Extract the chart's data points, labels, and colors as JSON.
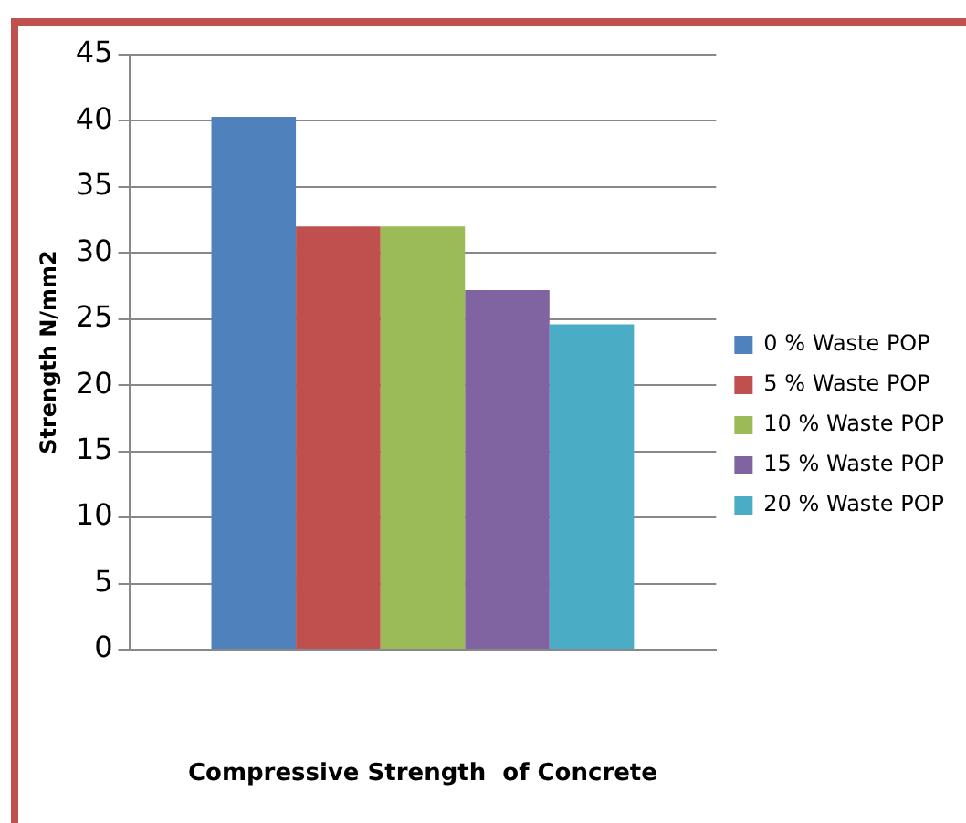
{
  "chart_data": {
    "type": "bar",
    "xlabel": "Compressive Strength  of Concrete",
    "ylabel": "Strength N/mm2",
    "categories": [
      null
    ],
    "series": [
      {
        "name": "0 % Waste POP",
        "color": "#4f81bd",
        "values": [
          40.3
        ]
      },
      {
        "name": "5 % Waste POP",
        "color": "#c0504d",
        "values": [
          32
        ]
      },
      {
        "name": "10 % Waste POP",
        "color": "#9bbb59",
        "values": [
          32
        ]
      },
      {
        "name": "15 % Waste POP",
        "color": "#8064a2",
        "values": [
          27.2
        ]
      },
      {
        "name": "20 % Waste POP",
        "color": "#4bacc6",
        "values": [
          24.6
        ]
      }
    ],
    "ylim": [
      0,
      45
    ],
    "yticks": [
      0,
      5,
      10,
      15,
      20,
      25,
      30,
      35,
      40,
      45
    ],
    "grid": "y",
    "legend": "right"
  }
}
